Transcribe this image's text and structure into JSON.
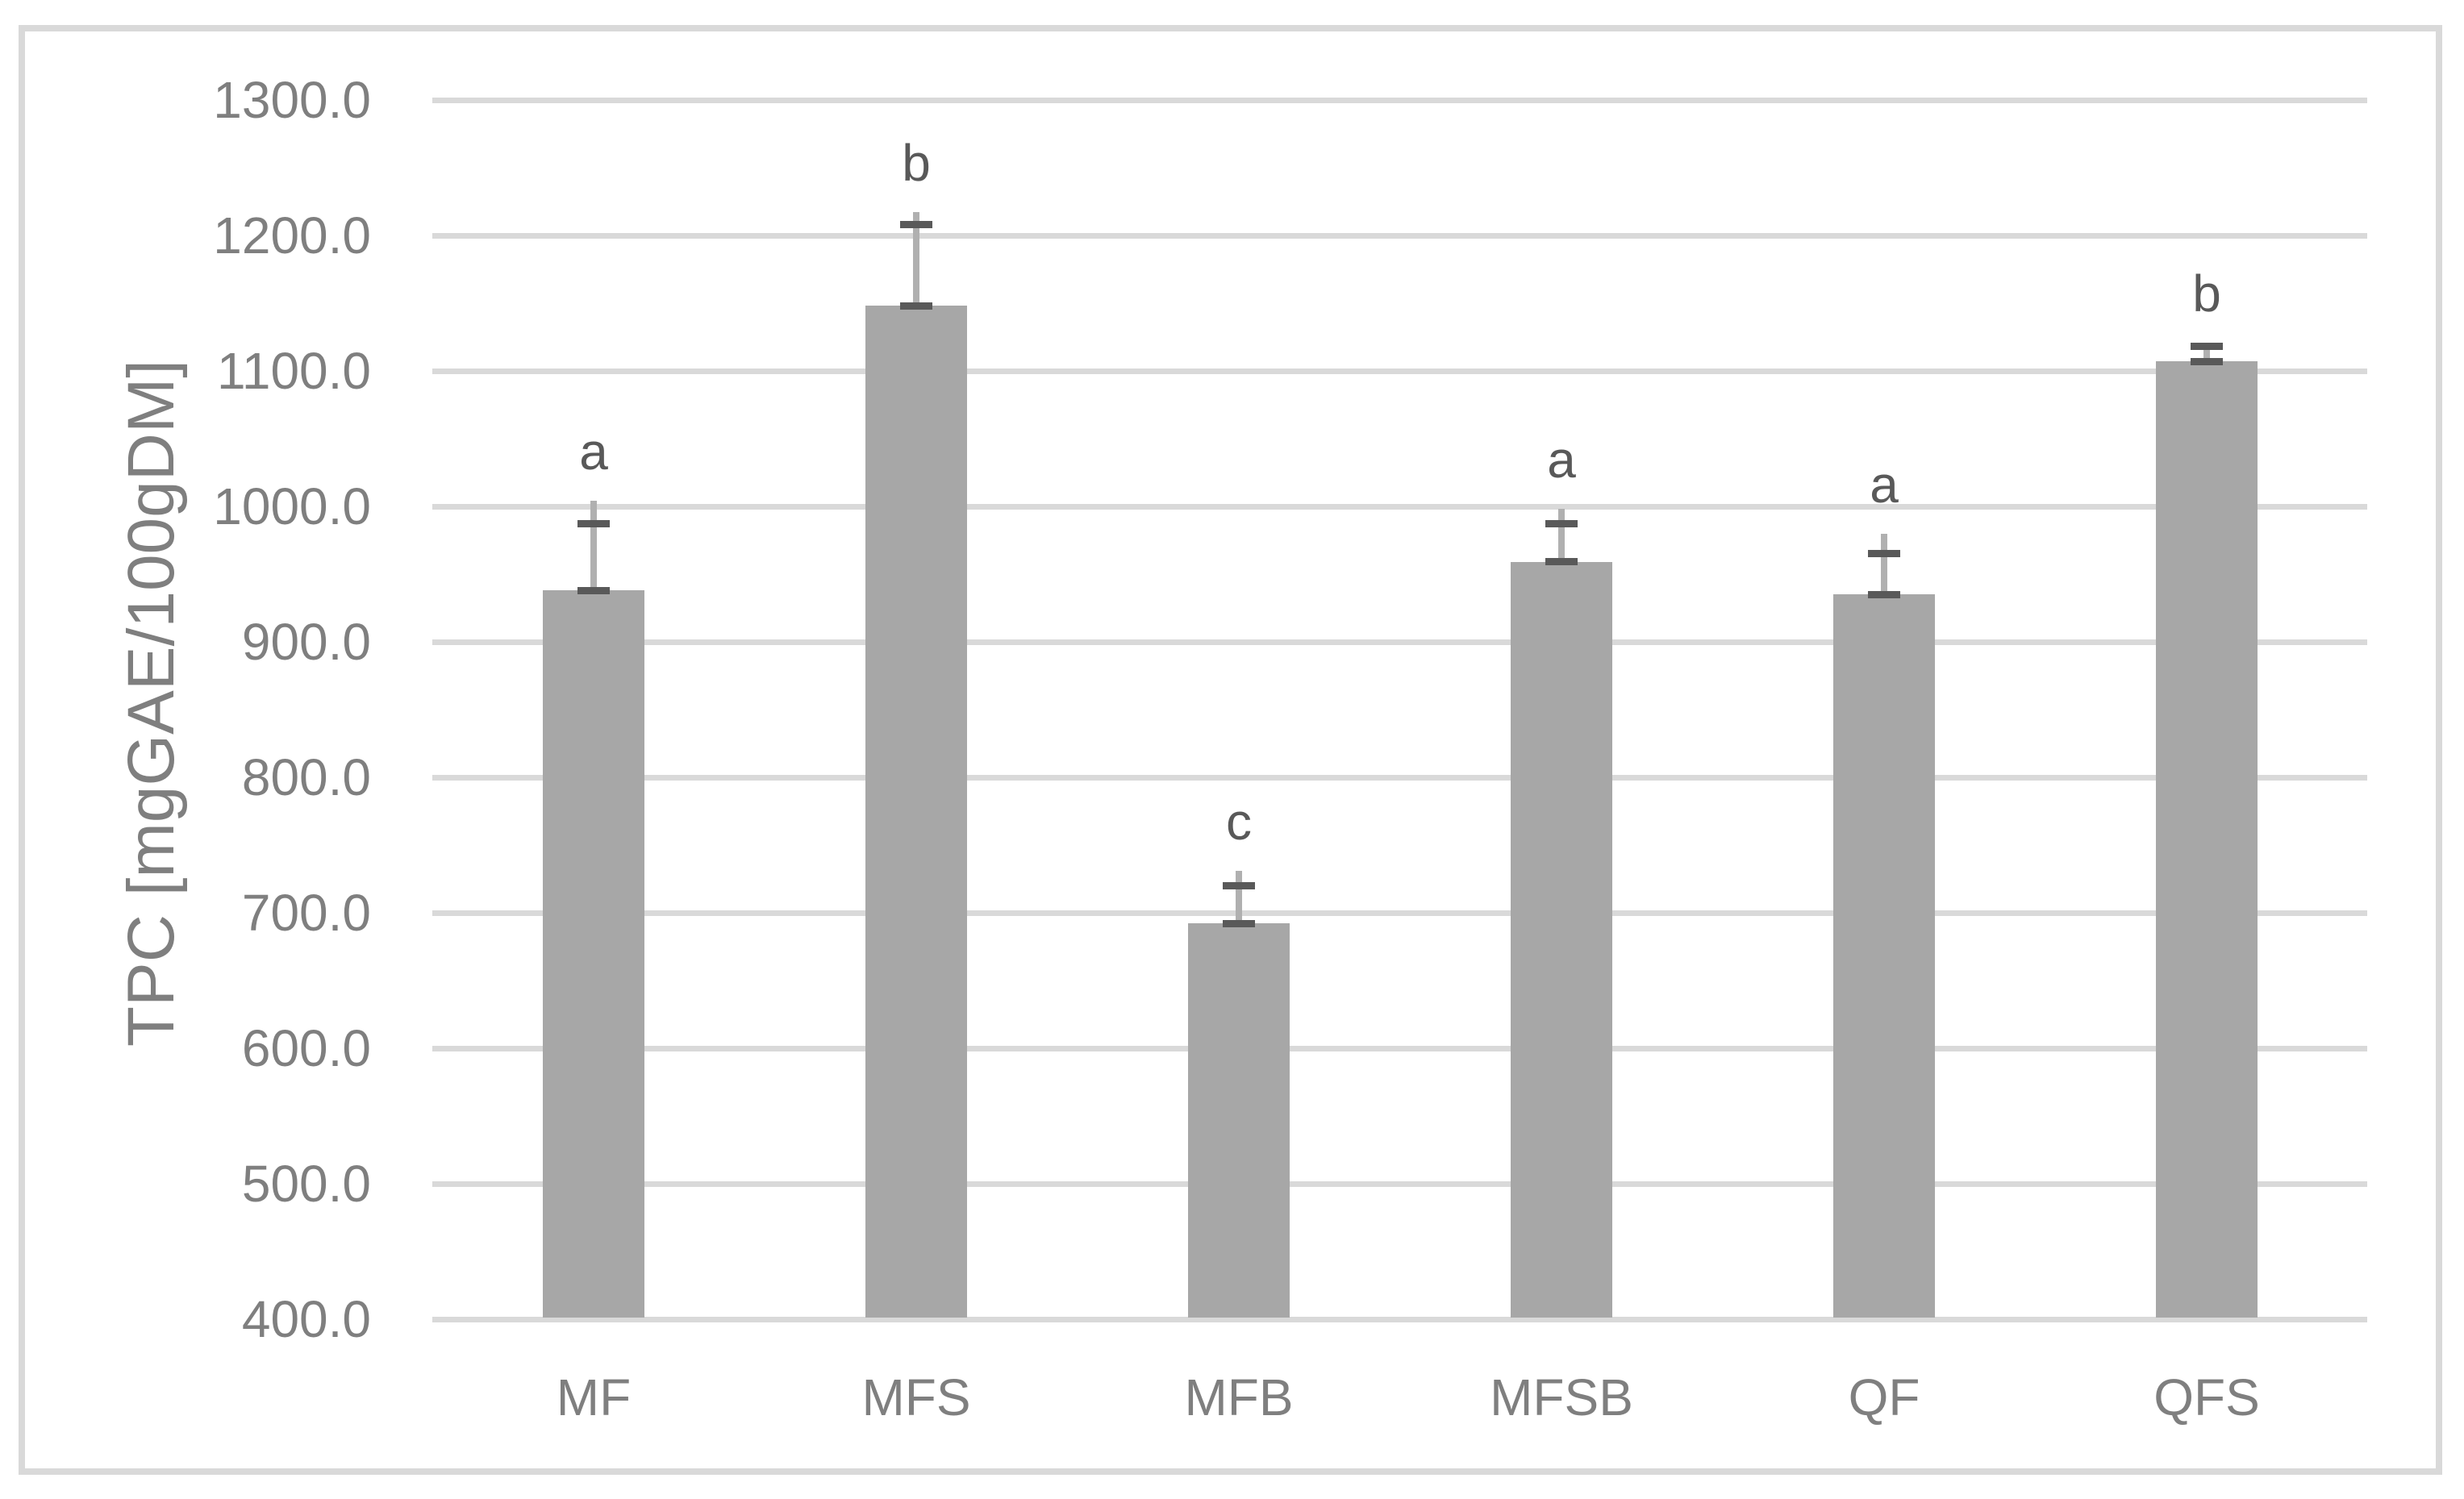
{
  "chart_data": {
    "type": "bar",
    "title": "",
    "xlabel": "",
    "ylabel": "TPC [mgGAE/100gDM]",
    "categories": [
      "MF",
      "MFS",
      "MFB",
      "MFSB",
      "QF",
      "QFS"
    ],
    "values": [
      938,
      1148,
      692,
      959,
      935,
      1107
    ],
    "error_plus": [
      49,
      60,
      28,
      28,
      30,
      11
    ],
    "whisker_tops": [
      1004,
      1217,
      731,
      998,
      980,
      1121
    ],
    "sig_letters": [
      "a",
      "b",
      "c",
      "a",
      "a",
      "b"
    ],
    "ylim": [
      400,
      1300
    ],
    "yticks": [
      "400.0",
      "500.0",
      "600.0",
      "700.0",
      "800.0",
      "900.0",
      "1000.0",
      "1100.0",
      "1200.0",
      "1300.0"
    ],
    "grid": true,
    "legend": false,
    "error_bar_style": "plus-direction, dark caps at bar top and error top, light vertical whisker"
  },
  "colors": {
    "background": "#ffffff",
    "border": "#d9d9d9",
    "gridline": "#d9d9d9",
    "axis_line": "#d9d9d9",
    "bar": "#a7a7a7",
    "error_whisker": "#b0b0b0",
    "error_cap": "#595959",
    "sig_letter": "#595959",
    "axis_text": "#7f7f7f"
  }
}
